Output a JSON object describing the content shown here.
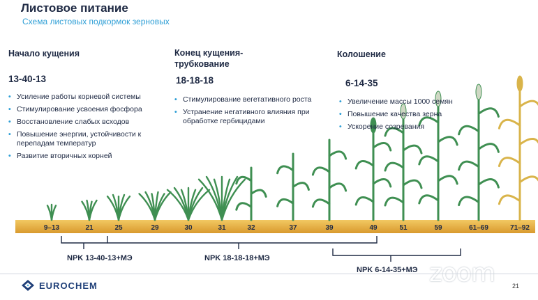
{
  "title": "Листовое питание",
  "subtitle": "Схема листовых подкормок зерновых",
  "phases": [
    {
      "title": "Начало кущения",
      "product": "13-40-13",
      "bullets": [
        "Усиление работы корневой системы",
        "Стимулирование усвоения фосфора",
        "Восстановление слабых всходов",
        "Повышение энергии, устойчивости к перепадам температур",
        "Развитие вторичных корней"
      ]
    },
    {
      "title": "Конец кущения-трубкование",
      "product": "18-18-18",
      "bullets": [
        "Стимулирование вегетативного роста",
        "Устранение негативного влияния при обработке гербицидами"
      ]
    },
    {
      "title": "Колошение",
      "product": "6-14-35",
      "bullets": [
        "Увеличение массы 1000 семян",
        "Повышение качества зерна",
        "Ускорение созревания"
      ]
    }
  ],
  "stages": [
    "9–13",
    "21",
    "25",
    "29",
    "30",
    "31",
    "32",
    "37",
    "39",
    "49",
    "51",
    "59",
    "61–69",
    "71–92"
  ],
  "treatments": [
    "NPK 13-40-13+МЭ",
    "NPK 18-18-18+МЭ",
    "NPK 6-14-35+МЭ"
  ],
  "footer": {
    "logo": "EUROCHEM",
    "page": "21",
    "watermark": "zoom"
  },
  "colors": {
    "accent": "#2f9fd6",
    "text": "#1f2a44",
    "plant": "#3f8f52",
    "soil": "#e8b24a",
    "ripe": "#d9b44a"
  },
  "icons": {
    "logo": "eurochem-logo-icon"
  }
}
